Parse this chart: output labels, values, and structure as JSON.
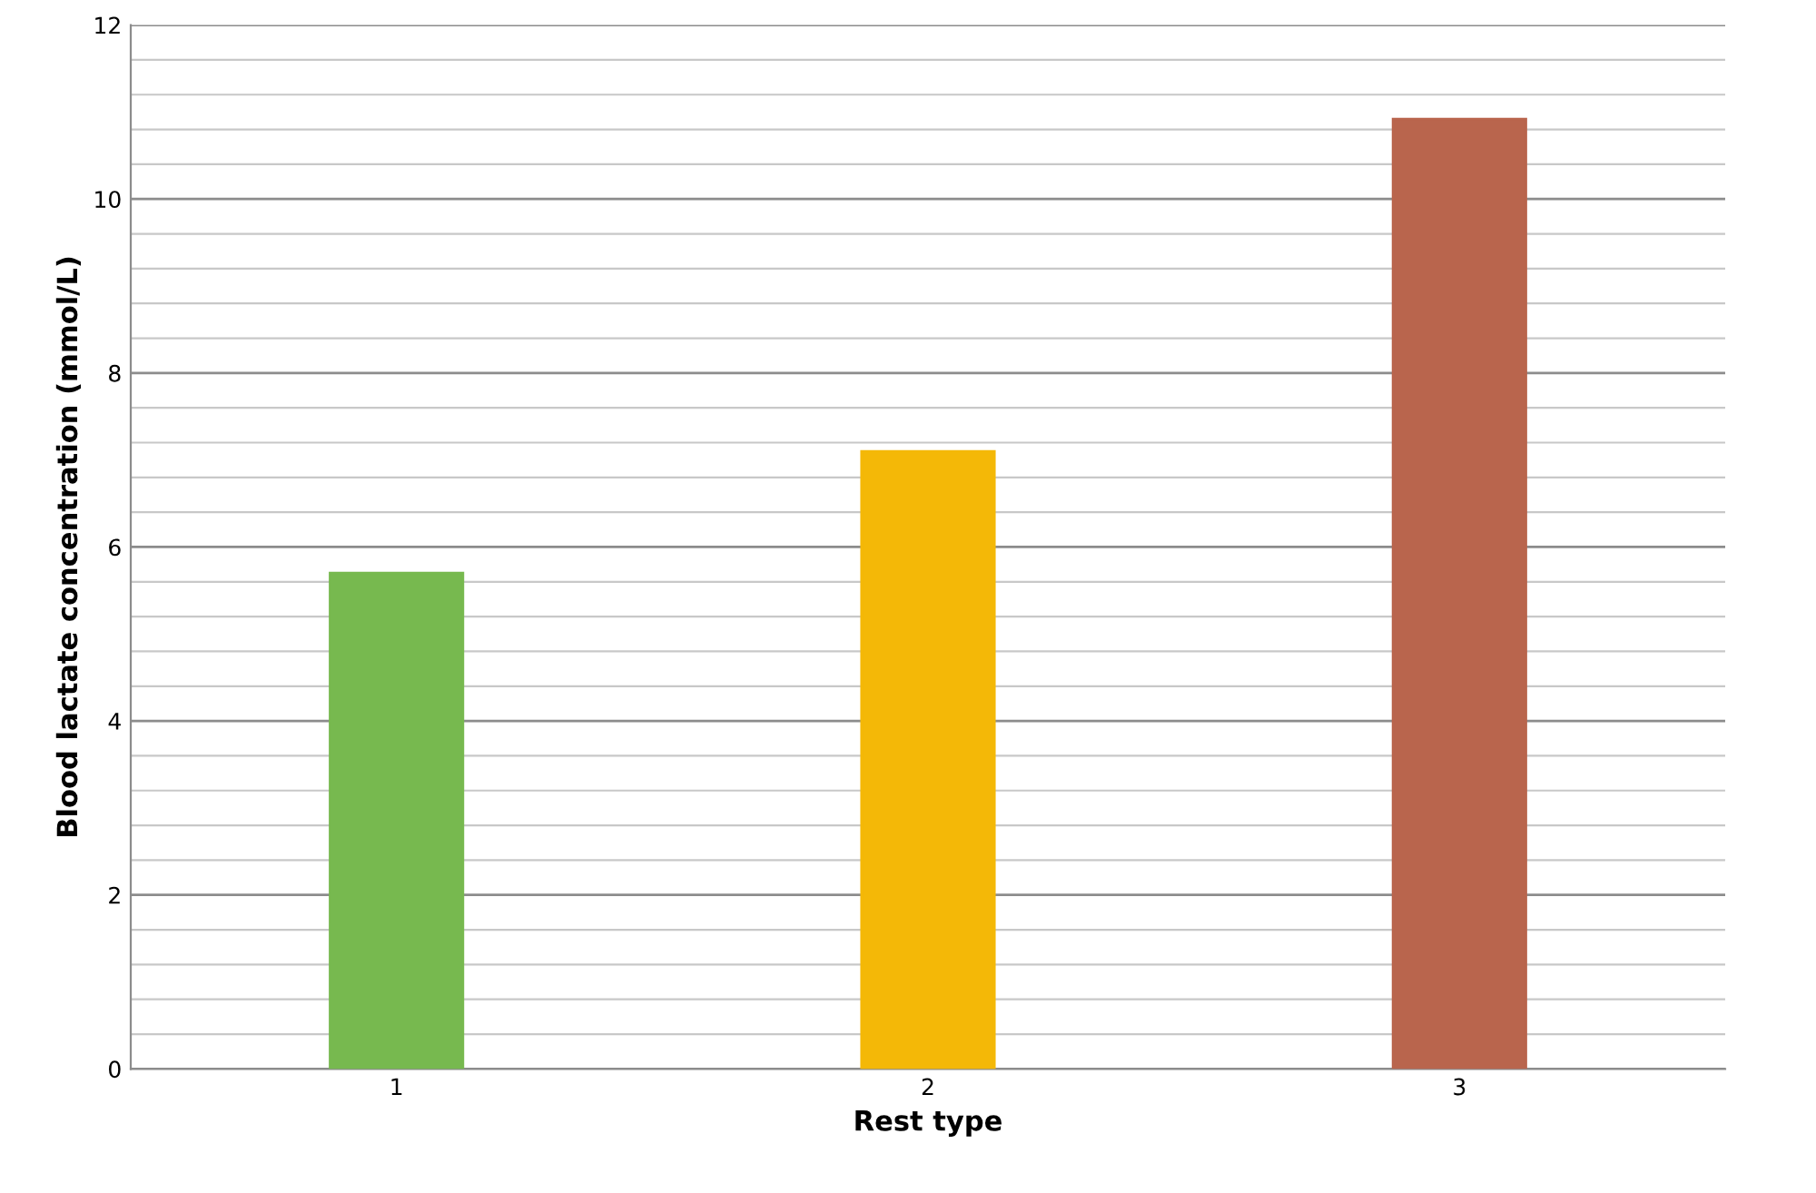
{
  "chart_data": {
    "type": "bar",
    "xlabel": "Rest type",
    "ylabel": "Blood lactate concentration (mmol/L)",
    "categories": [
      "1",
      "2",
      "3"
    ],
    "values": [
      5.7,
      7.1,
      10.92
    ],
    "colors": [
      "#77b94f",
      "#f4b807",
      "#b9654d"
    ],
    "ylim": [
      0,
      12
    ],
    "yticks": [
      0,
      {
        "value": 0.4,
        "label": null
      },
      {
        "value": 0.8,
        "label": null
      },
      {
        "value": 1.2,
        "label": null
      },
      {
        "value": 1.6,
        "label": null
      },
      2,
      {
        "value": 2.4,
        "label": null
      },
      {
        "value": 2.8,
        "label": null
      },
      {
        "value": 3.2,
        "label": null
      },
      {
        "value": 3.6,
        "label": null
      },
      4,
      {
        "value": 4.4,
        "label": null
      },
      {
        "value": 4.8,
        "label": null
      },
      {
        "value": 5.2,
        "label": null
      },
      {
        "value": 5.6,
        "label": null
      },
      6,
      {
        "value": 6.4,
        "label": null
      },
      {
        "value": 6.8,
        "label": null
      },
      {
        "value": 7.2,
        "label": null
      },
      {
        "value": 7.6,
        "label": null
      },
      8,
      {
        "value": 8.4,
        "label": null
      },
      {
        "value": 8.8,
        "label": null
      },
      {
        "value": 9.2,
        "label": null
      },
      {
        "value": 9.6,
        "label": null
      },
      10,
      {
        "value": 10.4,
        "label": null
      },
      {
        "value": 10.8,
        "label": null
      },
      {
        "value": 11.2,
        "label": null
      },
      {
        "value": 11.6,
        "label": null
      },
      12
    ],
    "grid": "y"
  }
}
